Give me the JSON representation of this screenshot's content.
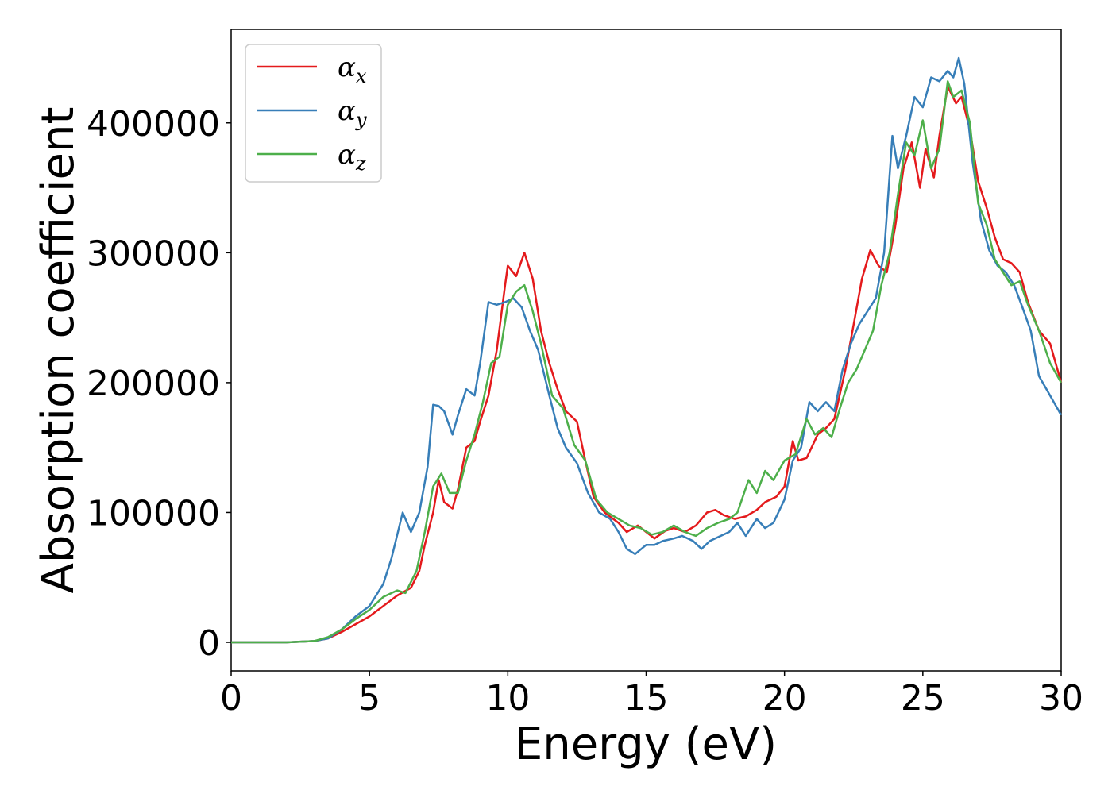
{
  "chart_data": {
    "type": "line",
    "title": "",
    "xlabel": "Energy (eV)",
    "ylabel": "Absorption coefficient",
    "xlim": [
      0,
      30
    ],
    "ylim": [
      -22000,
      472000
    ],
    "xticks": [
      0,
      5,
      10,
      15,
      20,
      25,
      30
    ],
    "yticks": [
      0,
      100000,
      200000,
      300000,
      400000
    ],
    "grid": false,
    "legend_position": "upper-left",
    "series": [
      {
        "name": "α",
        "subscript": "x",
        "color": "#e41a1c",
        "x": [
          0,
          1,
          2,
          3,
          3.5,
          4,
          4.5,
          5,
          5.5,
          6,
          6.5,
          6.8,
          7.0,
          7.3,
          7.5,
          7.7,
          8.0,
          8.2,
          8.5,
          8.8,
          9.0,
          9.3,
          9.6,
          9.9,
          10.0,
          10.3,
          10.6,
          10.9,
          11.2,
          11.5,
          11.8,
          12.1,
          12.5,
          12.8,
          13.1,
          13.5,
          14.0,
          14.3,
          14.7,
          15.0,
          15.3,
          15.7,
          16.0,
          16.4,
          16.8,
          17.2,
          17.5,
          17.8,
          18.2,
          18.6,
          19.0,
          19.3,
          19.7,
          20.0,
          20.3,
          20.5,
          20.8,
          21.2,
          21.5,
          21.8,
          22.2,
          22.5,
          22.8,
          23.1,
          23.4,
          23.7,
          24.0,
          24.3,
          24.6,
          24.9,
          25.1,
          25.4,
          25.6,
          25.9,
          26.2,
          26.4,
          26.7,
          27.0,
          27.3,
          27.6,
          27.9,
          28.2,
          28.5,
          28.8,
          29.2,
          29.6,
          30.0
        ],
        "values": [
          0,
          0,
          0,
          1000,
          3000,
          8000,
          14000,
          20000,
          28000,
          36000,
          42000,
          55000,
          75000,
          100000,
          125000,
          108000,
          103000,
          118000,
          150000,
          155000,
          170000,
          190000,
          225000,
          275000,
          290000,
          282000,
          300000,
          280000,
          240000,
          215000,
          195000,
          178000,
          170000,
          140000,
          112000,
          100000,
          92000,
          85000,
          90000,
          85000,
          80000,
          86000,
          88000,
          85000,
          90000,
          100000,
          102000,
          98000,
          95000,
          97000,
          102000,
          108000,
          112000,
          120000,
          155000,
          140000,
          142000,
          160000,
          165000,
          172000,
          210000,
          245000,
          280000,
          302000,
          290000,
          285000,
          320000,
          365000,
          385000,
          350000,
          380000,
          358000,
          390000,
          428000,
          415000,
          420000,
          395000,
          355000,
          335000,
          312000,
          295000,
          292000,
          285000,
          262000,
          240000,
          230000,
          200000
        ]
      },
      {
        "name": "α",
        "subscript": "y",
        "color": "#377eb8",
        "x": [
          0,
          1,
          2,
          3,
          3.5,
          4,
          4.5,
          5,
          5.5,
          5.8,
          6.2,
          6.5,
          6.8,
          7.1,
          7.3,
          7.5,
          7.7,
          8.0,
          8.2,
          8.5,
          8.8,
          9.0,
          9.3,
          9.6,
          9.9,
          10.2,
          10.5,
          10.8,
          11.1,
          11.5,
          11.8,
          12.1,
          12.5,
          12.9,
          13.3,
          13.7,
          14.0,
          14.3,
          14.6,
          15.0,
          15.3,
          15.6,
          16.0,
          16.3,
          16.7,
          17.0,
          17.3,
          17.7,
          18.0,
          18.3,
          18.6,
          19.0,
          19.3,
          19.6,
          20.0,
          20.3,
          20.6,
          20.9,
          21.2,
          21.5,
          21.8,
          22.1,
          22.4,
          22.7,
          23.0,
          23.3,
          23.6,
          23.9,
          24.1,
          24.4,
          24.7,
          25.0,
          25.3,
          25.6,
          25.9,
          26.1,
          26.3,
          26.5,
          26.8,
          27.1,
          27.4,
          27.7,
          28.0,
          28.3,
          28.6,
          28.9,
          29.2,
          29.6,
          30.0
        ],
        "values": [
          0,
          0,
          0,
          1000,
          3000,
          10000,
          20000,
          28000,
          45000,
          65000,
          100000,
          85000,
          100000,
          135000,
          183000,
          182000,
          178000,
          160000,
          175000,
          195000,
          190000,
          215000,
          262000,
          260000,
          262000,
          265000,
          258000,
          240000,
          225000,
          190000,
          165000,
          150000,
          138000,
          115000,
          100000,
          95000,
          85000,
          72000,
          68000,
          75000,
          75000,
          78000,
          80000,
          82000,
          78000,
          72000,
          78000,
          82000,
          85000,
          92000,
          82000,
          95000,
          88000,
          92000,
          110000,
          140000,
          150000,
          185000,
          178000,
          185000,
          178000,
          210000,
          230000,
          245000,
          255000,
          265000,
          300000,
          390000,
          365000,
          390000,
          420000,
          412000,
          435000,
          432000,
          440000,
          435000,
          450000,
          430000,
          370000,
          325000,
          302000,
          290000,
          285000,
          275000,
          258000,
          240000,
          205000,
          190000,
          175000
        ]
      },
      {
        "name": "α",
        "subscript": "z",
        "color": "#4daf4a",
        "x": [
          0,
          1,
          2,
          3,
          3.5,
          4,
          4.5,
          5,
          5.5,
          6,
          6.3,
          6.7,
          7.0,
          7.3,
          7.6,
          7.9,
          8.2,
          8.5,
          8.8,
          9.1,
          9.4,
          9.7,
          10.0,
          10.3,
          10.6,
          10.9,
          11.2,
          11.6,
          12.0,
          12.4,
          12.8,
          13.2,
          13.6,
          14.0,
          14.4,
          14.8,
          15.2,
          15.6,
          16.0,
          16.4,
          16.8,
          17.2,
          17.6,
          18.0,
          18.3,
          18.7,
          19.0,
          19.3,
          19.6,
          20.0,
          20.4,
          20.8,
          21.1,
          21.4,
          21.7,
          22.0,
          22.3,
          22.6,
          22.9,
          23.2,
          23.5,
          23.8,
          24.1,
          24.4,
          24.7,
          25.0,
          25.3,
          25.6,
          25.9,
          26.1,
          26.4,
          26.7,
          27.0,
          27.3,
          27.6,
          27.9,
          28.2,
          28.5,
          28.8,
          29.2,
          29.6,
          30.0
        ],
        "values": [
          0,
          0,
          0,
          1000,
          4000,
          10000,
          18000,
          25000,
          35000,
          40000,
          38000,
          55000,
          85000,
          120000,
          130000,
          115000,
          115000,
          140000,
          160000,
          185000,
          215000,
          220000,
          260000,
          270000,
          275000,
          255000,
          230000,
          190000,
          180000,
          152000,
          140000,
          110000,
          100000,
          95000,
          90000,
          88000,
          83000,
          85000,
          90000,
          85000,
          82000,
          88000,
          92000,
          95000,
          100000,
          125000,
          115000,
          132000,
          125000,
          140000,
          145000,
          172000,
          160000,
          165000,
          158000,
          180000,
          200000,
          210000,
          225000,
          240000,
          275000,
          300000,
          345000,
          385000,
          375000,
          402000,
          365000,
          380000,
          432000,
          420000,
          425000,
          400000,
          338000,
          322000,
          295000,
          285000,
          275000,
          278000,
          260000,
          240000,
          215000,
          200000
        ]
      }
    ]
  }
}
